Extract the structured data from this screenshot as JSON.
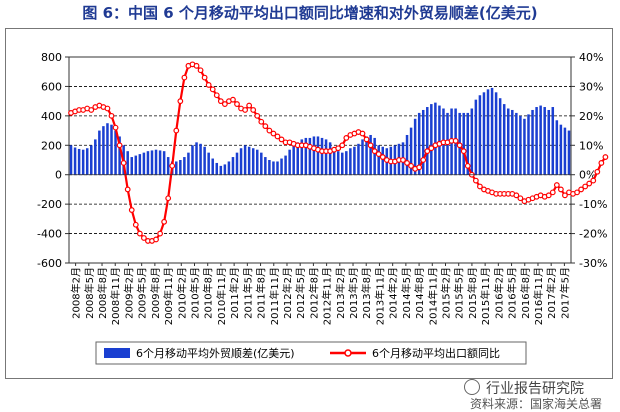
{
  "figure": {
    "title": "图 6：中国 6 个月移动平均出口额同比增速和对外贸易顺差(亿美元)",
    "watermark": "行业报告研究院",
    "source": "资料来源：国家海关总署"
  },
  "colors": {
    "bar": "#1a3fd1",
    "line": "#ff0000",
    "title": "#1f3a93"
  },
  "chart_data": {
    "type": "bar",
    "grid": true,
    "legend_position": "bottom",
    "x_tick_labels": [
      "2008年2月",
      "2008年5月",
      "2008年8月",
      "2008年11月",
      "2009年2月",
      "2009年5月",
      "2009年8月",
      "2009年11月",
      "2010年2月",
      "2010年5月",
      "2010年8月",
      "2010年11月",
      "2011年2月",
      "2011年5月",
      "2011年8月",
      "2011年11月",
      "2012年2月",
      "2012年5月",
      "2012年8月",
      "2012年11月",
      "2013年2月",
      "2013年5月",
      "2013年8月",
      "2013年11月",
      "2014年2月",
      "2014年5月",
      "2014年8月",
      "2014年11月",
      "2015年2月",
      "2015年5月",
      "2015年8月",
      "2015年11月",
      "2016年2月",
      "2016年5月",
      "2016年8月",
      "2016年11月",
      "2017年2月",
      "2017年5月"
    ],
    "y_left": {
      "ticks": [
        "800",
        "600",
        "400",
        "200",
        "0",
        "-200",
        "-400",
        "-600"
      ],
      "ylim": [
        -600,
        800
      ]
    },
    "y_right": {
      "ticks": [
        "40%",
        "30%",
        "20%",
        "10%",
        "0%",
        "-10%",
        "-20%",
        "-30%"
      ],
      "ylim": [
        -30,
        40
      ]
    },
    "series": [
      {
        "name": "6个月移动平均外贸顺差(亿美元)",
        "type": "bar",
        "axis": "left",
        "values": [
          200,
          185,
          175,
          170,
          180,
          200,
          240,
          300,
          330,
          350,
          340,
          300,
          260,
          200,
          160,
          120,
          130,
          140,
          150,
          160,
          165,
          170,
          165,
          160,
          120,
          90,
          90,
          100,
          120,
          150,
          200,
          220,
          210,
          190,
          150,
          110,
          80,
          60,
          70,
          90,
          120,
          150,
          180,
          200,
          190,
          180,
          170,
          150,
          120,
          100,
          90,
          90,
          110,
          130,
          170,
          200,
          220,
          240,
          250,
          250,
          260,
          260,
          250,
          240,
          220,
          180,
          160,
          150,
          160,
          180,
          190,
          210,
          240,
          260,
          270,
          250,
          200,
          190,
          180,
          190,
          200,
          210,
          220,
          270,
          320,
          380,
          420,
          440,
          460,
          480,
          490,
          470,
          450,
          420,
          450,
          450,
          420,
          420,
          420,
          450,
          510,
          540,
          560,
          580,
          590,
          560,
          520,
          480,
          450,
          440,
          420,
          400,
          380,
          410,
          440,
          460,
          470,
          460,
          440,
          460,
          370,
          340,
          320,
          300
        ]
      },
      {
        "name": "6个月移动平均出口额同比",
        "type": "line",
        "axis": "right",
        "values": [
          21,
          21.5,
          22,
          22,
          22.5,
          22,
          23,
          23.5,
          23,
          22.5,
          20,
          16,
          10,
          4,
          -5,
          -12,
          -17,
          -20,
          -21.5,
          -22.5,
          -22.5,
          -22,
          -20,
          -16,
          -8,
          3,
          15,
          25,
          33,
          37,
          37.5,
          37,
          35.5,
          33,
          30.5,
          29,
          27,
          25,
          24,
          25,
          25.5,
          24,
          22.5,
          22,
          23.5,
          22,
          20,
          18,
          16.5,
          15,
          14,
          13,
          12,
          11,
          11,
          10.5,
          10,
          10,
          10,
          9.5,
          9,
          8.5,
          8,
          8,
          8,
          8.5,
          9,
          10,
          12.5,
          13.5,
          14,
          14.5,
          14,
          12,
          10,
          8,
          7,
          6,
          5,
          4.5,
          4.5,
          5,
          5,
          4,
          3,
          2,
          2.5,
          5,
          8,
          9,
          10,
          10.5,
          11,
          11,
          11.5,
          11.5,
          10,
          8,
          3,
          0,
          -2,
          -4,
          -5,
          -5.5,
          -6,
          -6.5,
          -6.5,
          -6.5,
          -6.5,
          -6.5,
          -7,
          -8,
          -9,
          -8.5,
          -8,
          -7.5,
          -7,
          -7.5,
          -7,
          -6,
          -3.5,
          -5,
          -7,
          -6,
          -6.5,
          -6,
          -5,
          -4,
          -3,
          -2,
          1,
          4,
          6
        ]
      }
    ]
  }
}
